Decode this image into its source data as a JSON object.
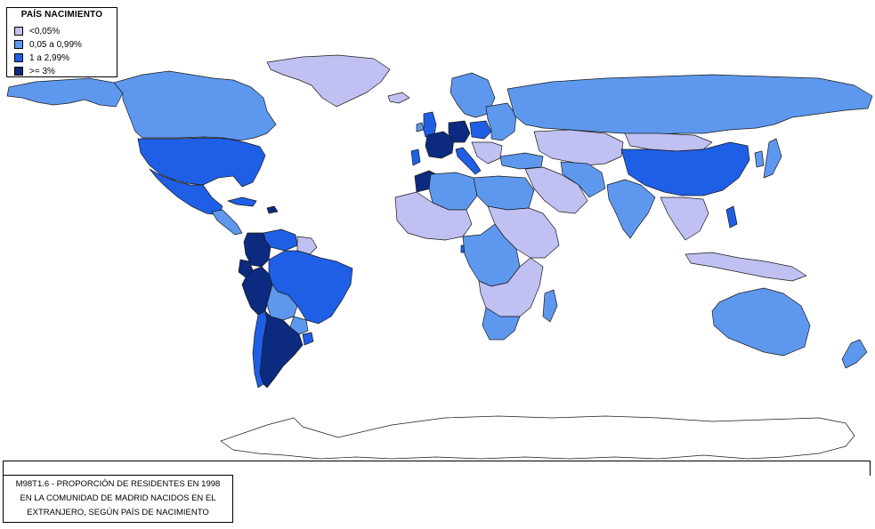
{
  "colors": {
    "lt_0_05": "#c0c0f2",
    "0_05_to_0_99": "#5e98ee",
    "1_to_2_99": "#1f5fe6",
    "gte_3": "#0c2a80",
    "no_data": "#ffffff"
  },
  "legend": {
    "title": "PAÍS NACIMIENTO",
    "items": [
      {
        "label": "<0,05%",
        "color_key": "lt_0_05"
      },
      {
        "label": "0,05 a 0,99%",
        "color_key": "0_05_to_0_99"
      },
      {
        "label": "1 a 2,99%",
        "color_key": "1_to_2_99"
      },
      {
        "label": ">= 3%",
        "color_key": "gte_3"
      }
    ]
  },
  "caption": {
    "lines": [
      "M98T1.6 - PROPORCIÓN DE RESIDENTES EN 1998",
      "EN LA COMUNIDAD DE MADRID NACIDOS EN EL",
      "EXTRANJERO, SEGÚN PAÍS DE NACIMIENTO"
    ]
  },
  "regions": [
    {
      "name": "alaska",
      "cls": "0_05_to_0_99"
    },
    {
      "name": "canada",
      "cls": "0_05_to_0_99"
    },
    {
      "name": "greenland",
      "cls": "lt_0_05"
    },
    {
      "name": "usa",
      "cls": "1_to_2_99"
    },
    {
      "name": "mexico",
      "cls": "1_to_2_99"
    },
    {
      "name": "central-america",
      "cls": "0_05_to_0_99"
    },
    {
      "name": "cuba",
      "cls": "1_to_2_99"
    },
    {
      "name": "dominican-republic",
      "cls": "gte_3"
    },
    {
      "name": "venezuela",
      "cls": "1_to_2_99"
    },
    {
      "name": "colombia",
      "cls": "gte_3"
    },
    {
      "name": "ecuador",
      "cls": "gte_3"
    },
    {
      "name": "peru",
      "cls": "gte_3"
    },
    {
      "name": "guianas",
      "cls": "lt_0_05"
    },
    {
      "name": "brazil",
      "cls": "1_to_2_99"
    },
    {
      "name": "bolivia",
      "cls": "0_05_to_0_99"
    },
    {
      "name": "paraguay",
      "cls": "0_05_to_0_99"
    },
    {
      "name": "chile",
      "cls": "1_to_2_99"
    },
    {
      "name": "argentina",
      "cls": "gte_3"
    },
    {
      "name": "uruguay",
      "cls": "1_to_2_99"
    },
    {
      "name": "iceland",
      "cls": "lt_0_05"
    },
    {
      "name": "uk",
      "cls": "1_to_2_99"
    },
    {
      "name": "ireland",
      "cls": "0_05_to_0_99"
    },
    {
      "name": "scandinavia",
      "cls": "0_05_to_0_99"
    },
    {
      "name": "france",
      "cls": "gte_3"
    },
    {
      "name": "germany",
      "cls": "gte_3"
    },
    {
      "name": "italy",
      "cls": "1_to_2_99"
    },
    {
      "name": "portugal",
      "cls": "1_to_2_99"
    },
    {
      "name": "poland",
      "cls": "1_to_2_99"
    },
    {
      "name": "eastern-europe",
      "cls": "0_05_to_0_99"
    },
    {
      "name": "balkans",
      "cls": "lt_0_05"
    },
    {
      "name": "russia",
      "cls": "0_05_to_0_99"
    },
    {
      "name": "turkey",
      "cls": "0_05_to_0_99"
    },
    {
      "name": "central-asia",
      "cls": "lt_0_05"
    },
    {
      "name": "middle-east",
      "cls": "lt_0_05"
    },
    {
      "name": "iran",
      "cls": "0_05_to_0_99"
    },
    {
      "name": "india",
      "cls": "0_05_to_0_99"
    },
    {
      "name": "china",
      "cls": "1_to_2_99"
    },
    {
      "name": "mongolia",
      "cls": "lt_0_05"
    },
    {
      "name": "southeast-asia",
      "cls": "lt_0_05"
    },
    {
      "name": "japan",
      "cls": "0_05_to_0_99"
    },
    {
      "name": "korea",
      "cls": "0_05_to_0_99"
    },
    {
      "name": "philippines",
      "cls": "1_to_2_99"
    },
    {
      "name": "indonesia",
      "cls": "lt_0_05"
    },
    {
      "name": "morocco",
      "cls": "gte_3"
    },
    {
      "name": "algeria",
      "cls": "0_05_to_0_99"
    },
    {
      "name": "libya-egypt",
      "cls": "0_05_to_0_99"
    },
    {
      "name": "west-africa",
      "cls": "lt_0_05"
    },
    {
      "name": "equatorial-guinea",
      "cls": "1_to_2_99"
    },
    {
      "name": "central-africa",
      "cls": "0_05_to_0_99"
    },
    {
      "name": "east-africa",
      "cls": "lt_0_05"
    },
    {
      "name": "southern-africa",
      "cls": "lt_0_05"
    },
    {
      "name": "south-africa",
      "cls": "0_05_to_0_99"
    },
    {
      "name": "madagascar",
      "cls": "0_05_to_0_99"
    },
    {
      "name": "australia",
      "cls": "0_05_to_0_99"
    },
    {
      "name": "new-zealand",
      "cls": "0_05_to_0_99"
    },
    {
      "name": "antarctica",
      "cls": "no_data"
    }
  ]
}
